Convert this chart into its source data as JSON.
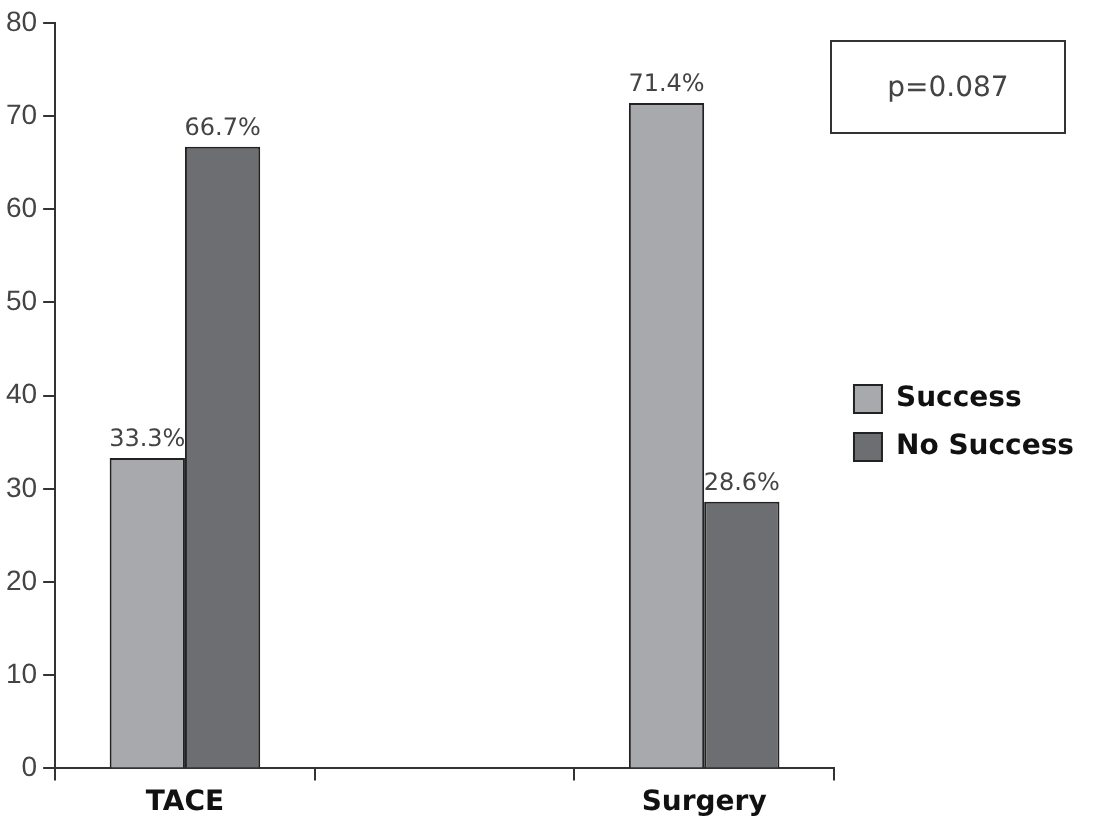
{
  "chart_data": {
    "type": "bar",
    "categories": [
      "TACE",
      null,
      "Surgery"
    ],
    "series": [
      {
        "name": "Success",
        "color": "#a7a9ac",
        "values": [
          33.3,
          null,
          71.4
        ],
        "value_labels": [
          "33.3%",
          null,
          "71.4%"
        ]
      },
      {
        "name": "No Success",
        "color": "#6d6e71",
        "values": [
          66.7,
          null,
          28.6
        ],
        "value_labels": [
          "66.7%",
          null,
          "28.6%"
        ]
      }
    ],
    "ylim": [
      0,
      80
    ],
    "yticks": [
      0,
      10,
      20,
      30,
      40,
      50,
      60,
      70,
      80
    ],
    "grid": false,
    "legend": "right",
    "annotations": [
      "p=0.087"
    ]
  }
}
